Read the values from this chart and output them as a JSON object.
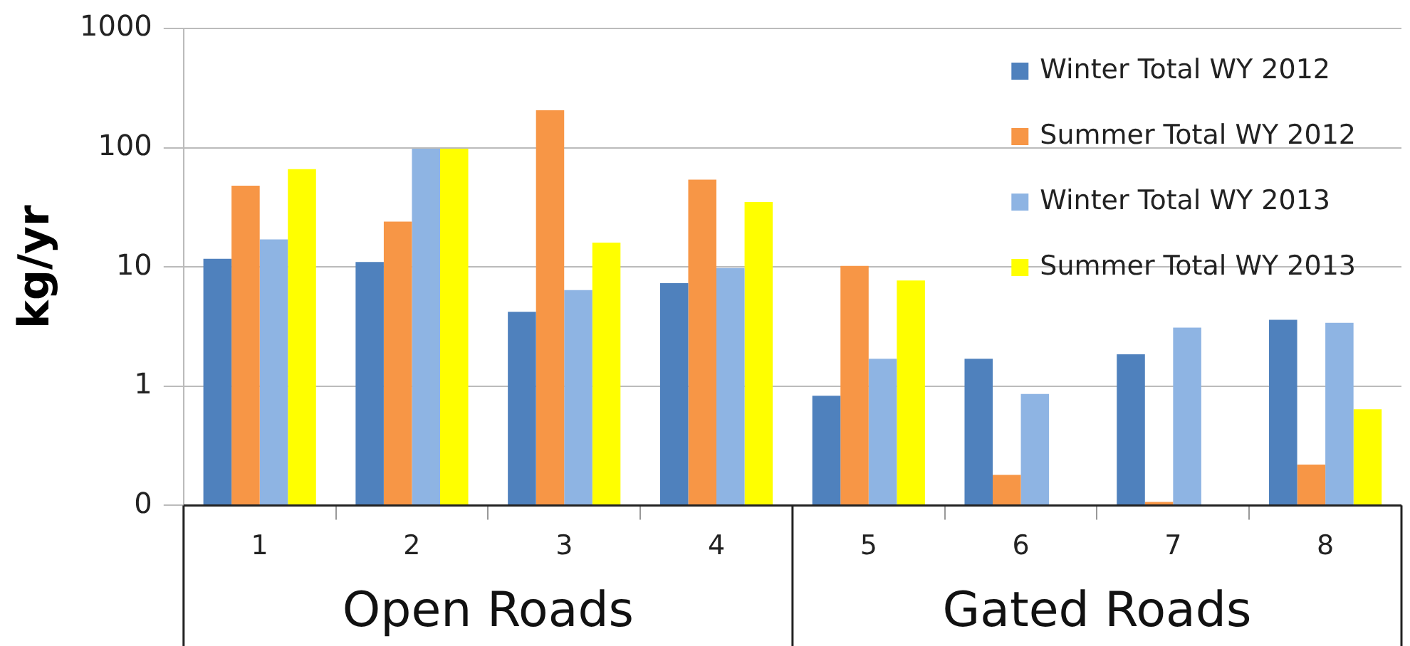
{
  "chart_data": {
    "type": "bar",
    "ylabel": "kg/yr",
    "categories": [
      "1",
      "2",
      "3",
      "4",
      "5",
      "6",
      "7",
      "8"
    ],
    "series": [
      {
        "name": "Winter Total WY 2012",
        "color": "#4f81bd",
        "values": [
          11.7,
          11,
          4.2,
          7.3,
          0.83,
          1.7,
          1.85,
          3.6
        ]
      },
      {
        "name": "Summer Total WY 2012",
        "color": "#f79646",
        "values": [
          48,
          24,
          206,
          54,
          10.2,
          0.18,
          0.107,
          0.22
        ]
      },
      {
        "name": "Winter Total WY 2013",
        "color": "#8eb4e3",
        "values": [
          17,
          98,
          6.4,
          9.8,
          1.7,
          0.86,
          3.1,
          3.4
        ]
      },
      {
        "name": "Summer Total WY 2013",
        "color": "#ffff00",
        "values": [
          66,
          98,
          16,
          35,
          7.7,
          null,
          null,
          0.64
        ]
      }
    ],
    "log": "y",
    "ylim": [
      0.1,
      1000
    ],
    "yticks": [
      {
        "value": 0.1,
        "label": "0"
      },
      1,
      10,
      100,
      1000
    ],
    "grid": "y",
    "legend": "top right",
    "annotations": [
      "Open Roads",
      "Gated Roads"
    ]
  }
}
